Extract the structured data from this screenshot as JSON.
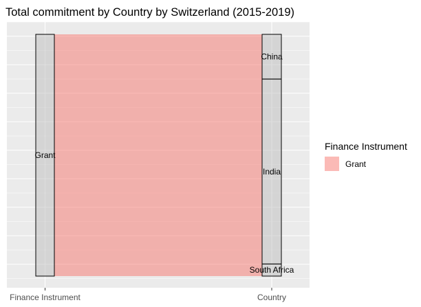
{
  "chart_data": {
    "type": "alluvial",
    "title": "Total commitment by Country by  Switzerland  (2015-2019)",
    "axes": [
      "Finance Instrument",
      "Country"
    ],
    "strata": {
      "Finance Instrument": [
        {
          "name": "Grant",
          "value": 100
        }
      ],
      "Country": [
        {
          "name": "China",
          "value": 18.5
        },
        {
          "name": "India",
          "value": 76.5
        },
        {
          "name": "South Africa",
          "value": 5
        }
      ]
    },
    "flows": [
      {
        "from": "Grant",
        "to": "China",
        "value": 18.5,
        "fill": "Grant"
      },
      {
        "from": "Grant",
        "to": "India",
        "value": 76.5,
        "fill": "Grant"
      },
      {
        "from": "Grant",
        "to": "South Africa",
        "value": 5,
        "fill": "Grant"
      }
    ],
    "legend": {
      "title": "Finance Instrument",
      "position": "right",
      "entries": [
        {
          "label": "Grant",
          "color": "#F8766D"
        }
      ]
    },
    "grid": true,
    "y_ticks_visible": false
  },
  "colors": {
    "panel_background": "#EBEBEB",
    "gridline": "#FFFFFF",
    "flow_fill": "#F8766D",
    "stratum_fill": "#BEBEBE",
    "stratum_border": "#000000"
  }
}
